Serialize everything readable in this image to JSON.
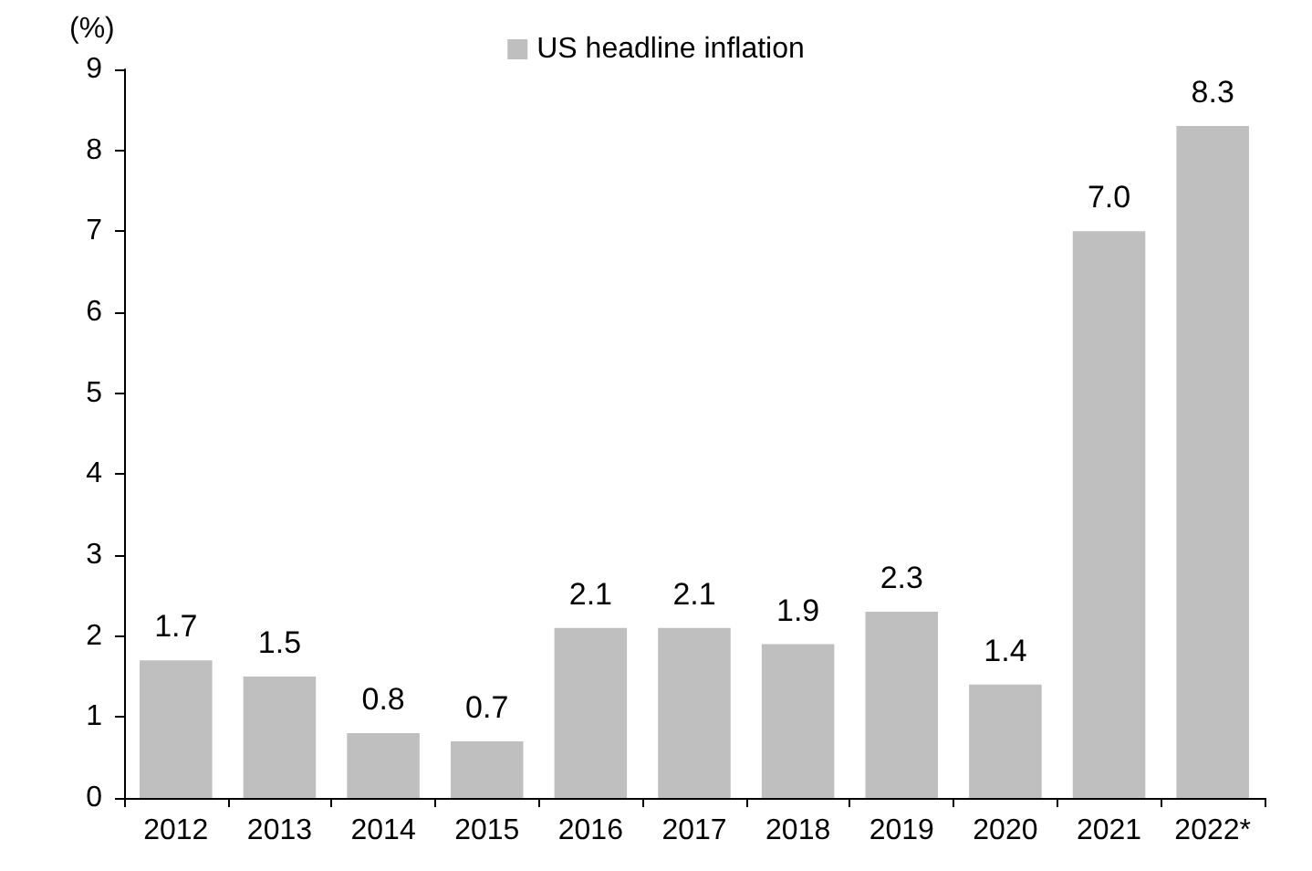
{
  "chart_data": {
    "type": "bar",
    "ylabel": "(%)",
    "categories": [
      "2012",
      "2013",
      "2014",
      "2015",
      "2016",
      "2017",
      "2018",
      "2019",
      "2020",
      "2021",
      "2022*"
    ],
    "series": [
      {
        "name": "US headline inflation",
        "color": "#bfbfbf",
        "values": [
          1.7,
          1.5,
          0.8,
          0.7,
          2.1,
          2.1,
          1.9,
          2.3,
          1.4,
          7.0,
          8.3
        ],
        "value_labels": [
          "1.7",
          "1.5",
          "0.8",
          "0.7",
          "2.1",
          "2.1",
          "1.9",
          "2.3",
          "1.4",
          "7.0",
          "8.3"
        ]
      }
    ],
    "ylim": [
      0,
      9
    ],
    "yticks": [
      0,
      1,
      2,
      3,
      4,
      5,
      6,
      7,
      8,
      9
    ],
    "grid": false,
    "legend": "top"
  }
}
